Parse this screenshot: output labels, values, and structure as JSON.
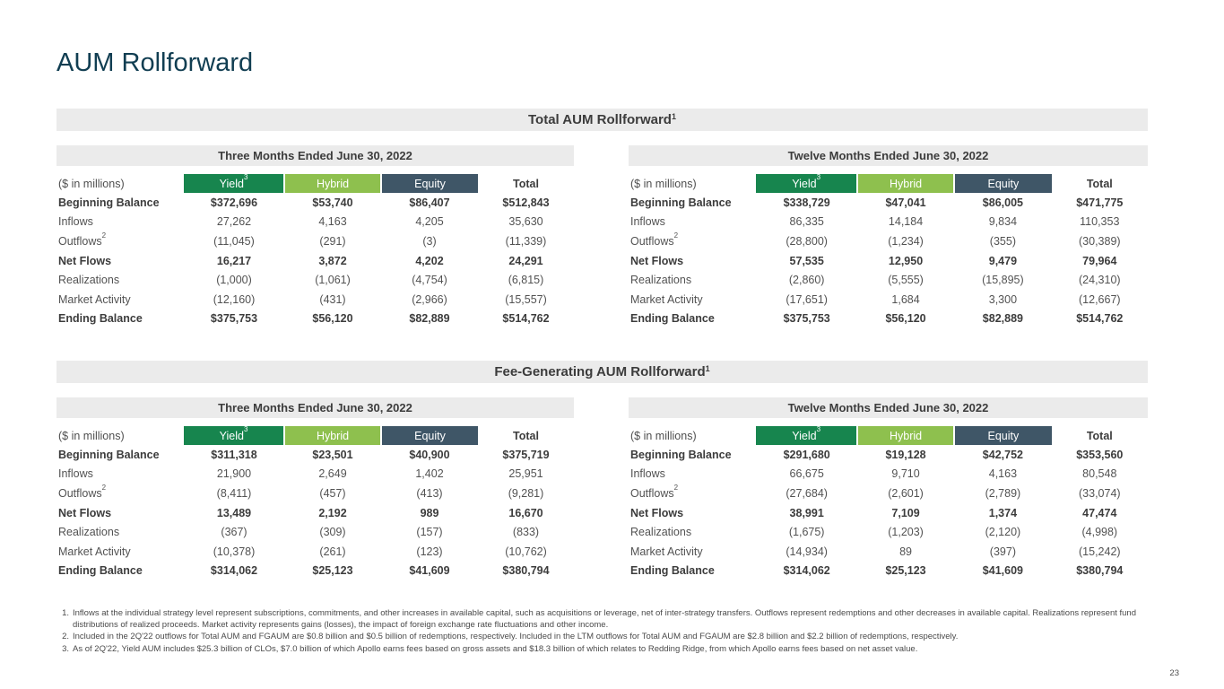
{
  "page": {
    "title": "AUM Rollforward",
    "page_number": "23"
  },
  "colors": {
    "title": "#113E52",
    "band_bg": "#EBEBEB",
    "yield": "#17854E",
    "hybrid": "#8EC04E",
    "equity": "#3F5667",
    "header_text": "#FFFFFF"
  },
  "labels": {
    "units": "($ in millions)",
    "columns": {
      "yield": "Yield",
      "yield_sup": "3",
      "hybrid": "Hybrid",
      "equity": "Equity",
      "total": "Total"
    }
  },
  "sections": [
    {
      "title": "Total AUM Rollforward",
      "title_sup": "1",
      "tables": [
        {
          "period": "Three Months Ended June 30, 2022",
          "rows": [
            {
              "label": "Beginning Balance",
              "bold": true,
              "values": [
                "$372,696",
                "$53,740",
                "$86,407",
                "$512,843"
              ]
            },
            {
              "label": "Inflows",
              "bold": false,
              "values": [
                "27,262",
                "4,163",
                "4,205",
                "35,630"
              ]
            },
            {
              "label": "Outflows",
              "sup": "2",
              "bold": false,
              "values": [
                "(11,045)",
                "(291)",
                "(3)",
                "(11,339)"
              ]
            },
            {
              "label": "Net Flows",
              "bold": true,
              "values": [
                "16,217",
                "3,872",
                "4,202",
                "24,291"
              ]
            },
            {
              "label": "Realizations",
              "bold": false,
              "values": [
                "(1,000)",
                "(1,061)",
                "(4,754)",
                "(6,815)"
              ]
            },
            {
              "label": "Market Activity",
              "bold": false,
              "values": [
                "(12,160)",
                "(431)",
                "(2,966)",
                "(15,557)"
              ]
            },
            {
              "label": "Ending Balance",
              "bold": true,
              "values": [
                "$375,753",
                "$56,120",
                "$82,889",
                "$514,762"
              ]
            }
          ]
        },
        {
          "period": "Twelve Months Ended June 30, 2022",
          "rows": [
            {
              "label": "Beginning Balance",
              "bold": true,
              "values": [
                "$338,729",
                "$47,041",
                "$86,005",
                "$471,775"
              ]
            },
            {
              "label": "Inflows",
              "bold": false,
              "values": [
                "86,335",
                "14,184",
                "9,834",
                "110,353"
              ]
            },
            {
              "label": "Outflows",
              "sup": "2",
              "bold": false,
              "values": [
                "(28,800)",
                "(1,234)",
                "(355)",
                "(30,389)"
              ]
            },
            {
              "label": "Net Flows",
              "bold": true,
              "values": [
                "57,535",
                "12,950",
                "9,479",
                "79,964"
              ]
            },
            {
              "label": "Realizations",
              "bold": false,
              "values": [
                "(2,860)",
                "(5,555)",
                "(15,895)",
                "(24,310)"
              ]
            },
            {
              "label": "Market Activity",
              "bold": false,
              "values": [
                "(17,651)",
                "1,684",
                "3,300",
                "(12,667)"
              ]
            },
            {
              "label": "Ending Balance",
              "bold": true,
              "values": [
                "$375,753",
                "$56,120",
                "$82,889",
                "$514,762"
              ]
            }
          ]
        }
      ]
    },
    {
      "title": "Fee-Generating AUM Rollforward",
      "title_sup": "1",
      "tables": [
        {
          "period": "Three Months Ended June 30, 2022",
          "rows": [
            {
              "label": "Beginning Balance",
              "bold": true,
              "values": [
                "$311,318",
                "$23,501",
                "$40,900",
                "$375,719"
              ]
            },
            {
              "label": "Inflows",
              "bold": false,
              "values": [
                "21,900",
                "2,649",
                "1,402",
                "25,951"
              ]
            },
            {
              "label": "Outflows",
              "sup": "2",
              "bold": false,
              "values": [
                "(8,411)",
                "(457)",
                "(413)",
                "(9,281)"
              ]
            },
            {
              "label": "Net Flows",
              "bold": true,
              "values": [
                "13,489",
                "2,192",
                "989",
                "16,670"
              ]
            },
            {
              "label": "Realizations",
              "bold": false,
              "values": [
                "(367)",
                "(309)",
                "(157)",
                "(833)"
              ]
            },
            {
              "label": "Market Activity",
              "bold": false,
              "values": [
                "(10,378)",
                "(261)",
                "(123)",
                "(10,762)"
              ]
            },
            {
              "label": "Ending Balance",
              "bold": true,
              "values": [
                "$314,062",
                "$25,123",
                "$41,609",
                "$380,794"
              ]
            }
          ]
        },
        {
          "period": "Twelve Months Ended June 30, 2022",
          "rows": [
            {
              "label": "Beginning Balance",
              "bold": true,
              "values": [
                "$291,680",
                "$19,128",
                "$42,752",
                "$353,560"
              ]
            },
            {
              "label": "Inflows",
              "bold": false,
              "values": [
                "66,675",
                "9,710",
                "4,163",
                "80,548"
              ]
            },
            {
              "label": "Outflows",
              "sup": "2",
              "bold": false,
              "values": [
                "(27,684)",
                "(2,601)",
                "(2,789)",
                "(33,074)"
              ]
            },
            {
              "label": "Net Flows",
              "bold": true,
              "values": [
                "38,991",
                "7,109",
                "1,374",
                "47,474"
              ]
            },
            {
              "label": "Realizations",
              "bold": false,
              "values": [
                "(1,675)",
                "(1,203)",
                "(2,120)",
                "(4,998)"
              ]
            },
            {
              "label": "Market Activity",
              "bold": false,
              "values": [
                "(14,934)",
                "89",
                "(397)",
                "(15,242)"
              ]
            },
            {
              "label": "Ending Balance",
              "bold": true,
              "values": [
                "$314,062",
                "$25,123",
                "$41,609",
                "$380,794"
              ]
            }
          ]
        }
      ]
    }
  ],
  "footnotes": [
    {
      "num": "1.",
      "text": "Inflows at the individual strategy level represent subscriptions, commitments, and other increases in available capital, such as acquisitions or leverage, net of inter-strategy transfers. Outflows represent redemptions and other decreases in available capital. Realizations represent fund distributions of realized proceeds. Market activity represents gains (losses), the impact of foreign exchange rate fluctuations and other income."
    },
    {
      "num": "2.",
      "text": "Included in the 2Q'22 outflows for Total AUM and FGAUM are $0.8 billion and $0.5 billion of redemptions, respectively. Included in the LTM outflows for Total AUM and FGAUM are $2.8 billion and $2.2 billion of redemptions, respectively."
    },
    {
      "num": "3.",
      "text": "As of 2Q'22, Yield AUM includes $25.3 billion of CLOs, $7.0 billion of which Apollo earns fees based on gross assets and $18.3 billion of which relates to Redding Ridge, from which Apollo earns fees based on net asset value."
    }
  ]
}
